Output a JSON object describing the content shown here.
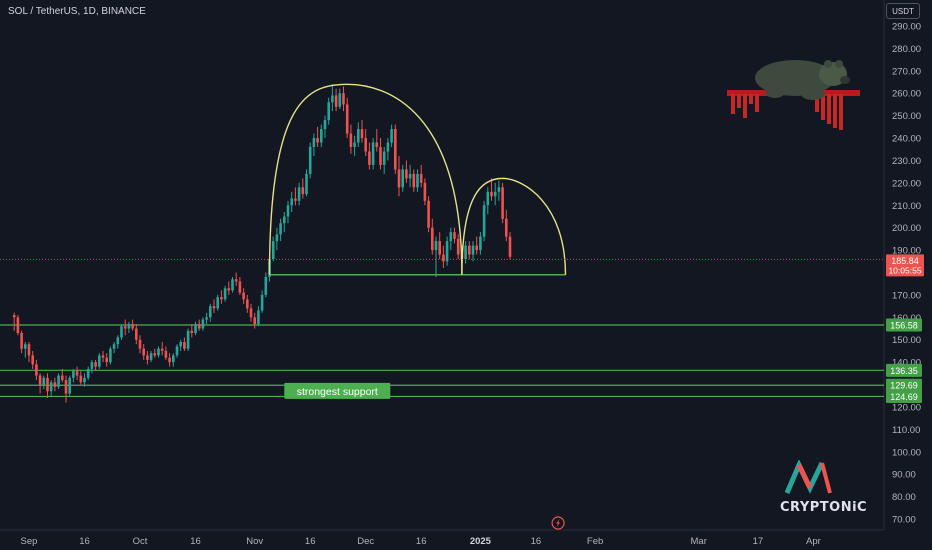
{
  "header": {
    "symbol_title": "SOL / TetherUS, 1D, BINANCE",
    "currency_button": "USDT"
  },
  "brand": {
    "logo_text": "CRYPTONiC"
  },
  "colors": {
    "background": "#131722",
    "up": "#26a69a",
    "down": "#ef5350",
    "support_line": "#4caf50",
    "pattern_curve": "#e5e28a",
    "text": "#d1d4dc",
    "current_price_line": "#ef5350"
  },
  "chart_data": {
    "type": "candlestick",
    "title": "SOL / TetherUS, 1D, BINANCE",
    "ylim": [
      65,
      295
    ],
    "y_ticks": [
      "290.00",
      "280.00",
      "270.00",
      "260.00",
      "250.00",
      "240.00",
      "230.00",
      "220.00",
      "210.00",
      "200.00",
      "190.00",
      "180.00",
      "170.00",
      "160.00",
      "150.00",
      "140.00",
      "130.00",
      "120.00",
      "110.00",
      "100.00",
      "90.00",
      "80.00",
      "70.00"
    ],
    "x_ticks": [
      "Sep",
      "16",
      "Oct",
      "16",
      "Nov",
      "16",
      "Dec",
      "16",
      "2025",
      "16",
      "Feb",
      "Mar",
      "17",
      "Apr"
    ],
    "x_tick_dates": [
      "2024-09-01",
      "2024-09-16",
      "2024-10-01",
      "2024-10-16",
      "2024-11-01",
      "2024-11-16",
      "2024-12-01",
      "2024-12-16",
      "2025-01-01",
      "2025-01-16",
      "2025-02-01",
      "2025-03-01",
      "2025-03-17",
      "2025-04-01"
    ],
    "current_price": {
      "value": "185.84",
      "countdown": "10:05:55"
    },
    "horizontal_levels": [
      {
        "value": 156.58,
        "label": "156.58"
      },
      {
        "value": 136.35,
        "label": "136.35"
      },
      {
        "value": 129.69,
        "label": "129.69"
      },
      {
        "value": 124.69,
        "label": "124.69"
      }
    ],
    "annotations": [
      {
        "text": "strongest support",
        "date": "2024-11-09",
        "price": 127.2
      }
    ],
    "pattern": {
      "type": "head-and-shoulders-like double top",
      "neckline": {
        "start_date": "2024-11-05",
        "end_date": "2025-01-24",
        "price": 179
      },
      "arc1": {
        "start_date": "2024-11-05",
        "peak_date": "2024-11-26",
        "peak_price": 264,
        "end_date": "2024-12-27"
      },
      "arc2": {
        "start_date": "2024-12-27",
        "peak_date": "2025-01-07",
        "peak_price": 222,
        "end_date": "2025-01-24"
      }
    },
    "candles": [
      [
        "2024-08-28",
        161,
        162,
        154,
        160
      ],
      [
        "2024-08-29",
        160,
        161,
        152,
        153
      ],
      [
        "2024-08-30",
        153,
        154,
        144,
        146
      ],
      [
        "2024-08-31",
        146,
        149,
        142,
        148
      ],
      [
        "2024-09-01",
        148,
        149,
        140,
        143
      ],
      [
        "2024-09-02",
        143,
        145,
        137,
        139
      ],
      [
        "2024-09-03",
        139,
        141,
        132,
        134
      ],
      [
        "2024-09-04",
        134,
        135,
        126,
        130
      ],
      [
        "2024-09-05",
        130,
        134,
        128,
        133
      ],
      [
        "2024-09-06",
        133,
        135,
        124,
        127
      ],
      [
        "2024-09-07",
        127,
        132,
        125,
        131
      ],
      [
        "2024-09-08",
        131,
        133,
        127,
        129
      ],
      [
        "2024-09-09",
        129,
        135,
        128,
        134
      ],
      [
        "2024-09-10",
        134,
        137,
        131,
        132
      ],
      [
        "2024-09-11",
        132,
        134,
        122,
        126
      ],
      [
        "2024-09-12",
        126,
        134,
        125,
        133
      ],
      [
        "2024-09-13",
        133,
        137,
        131,
        136
      ],
      [
        "2024-09-14",
        136,
        138,
        132,
        134
      ],
      [
        "2024-09-15",
        134,
        136,
        130,
        131
      ],
      [
        "2024-09-16",
        131,
        135,
        129,
        133
      ],
      [
        "2024-09-17",
        133,
        138,
        132,
        137
      ],
      [
        "2024-09-18",
        137,
        141,
        135,
        140
      ],
      [
        "2024-09-19",
        140,
        141,
        136,
        138
      ],
      [
        "2024-09-20",
        138,
        144,
        137,
        143
      ],
      [
        "2024-09-21",
        143,
        145,
        140,
        142
      ],
      [
        "2024-09-22",
        142,
        144,
        138,
        140
      ],
      [
        "2024-09-23",
        140,
        147,
        139,
        146
      ],
      [
        "2024-09-24",
        146,
        149,
        144,
        148
      ],
      [
        "2024-09-25",
        148,
        152,
        146,
        151
      ],
      [
        "2024-09-26",
        151,
        157,
        150,
        156
      ],
      [
        "2024-09-27",
        156,
        159,
        152,
        155
      ],
      [
        "2024-09-28",
        155,
        158,
        153,
        157
      ],
      [
        "2024-09-29",
        157,
        159,
        154,
        155
      ],
      [
        "2024-09-30",
        155,
        157,
        148,
        150
      ],
      [
        "2024-10-01",
        150,
        152,
        144,
        146
      ],
      [
        "2024-10-02",
        146,
        148,
        141,
        143
      ],
      [
        "2024-10-03",
        143,
        145,
        139,
        141
      ],
      [
        "2024-10-04",
        141,
        145,
        140,
        144
      ],
      [
        "2024-10-05",
        144,
        146,
        142,
        143
      ],
      [
        "2024-10-06",
        143,
        147,
        142,
        146
      ],
      [
        "2024-10-07",
        146,
        149,
        143,
        145
      ],
      [
        "2024-10-08",
        145,
        147,
        141,
        142
      ],
      [
        "2024-10-09",
        142,
        144,
        138,
        140
      ],
      [
        "2024-10-10",
        140,
        144,
        138,
        143
      ],
      [
        "2024-10-11",
        143,
        148,
        142,
        147
      ],
      [
        "2024-10-12",
        147,
        150,
        145,
        149
      ],
      [
        "2024-10-13",
        149,
        151,
        145,
        146
      ],
      [
        "2024-10-14",
        146,
        155,
        145,
        154
      ],
      [
        "2024-10-15",
        154,
        157,
        151,
        153
      ],
      [
        "2024-10-16",
        153,
        158,
        152,
        157
      ],
      [
        "2024-10-17",
        157,
        159,
        154,
        155
      ],
      [
        "2024-10-18",
        155,
        160,
        154,
        159
      ],
      [
        "2024-10-19",
        159,
        162,
        157,
        160
      ],
      [
        "2024-10-20",
        160,
        166,
        158,
        165
      ],
      [
        "2024-10-21",
        165,
        168,
        162,
        164
      ],
      [
        "2024-10-22",
        164,
        170,
        163,
        169
      ],
      [
        "2024-10-23",
        169,
        172,
        166,
        168
      ],
      [
        "2024-10-24",
        168,
        174,
        167,
        173
      ],
      [
        "2024-10-25",
        173,
        176,
        170,
        172
      ],
      [
        "2024-10-26",
        172,
        178,
        171,
        177
      ],
      [
        "2024-10-27",
        177,
        180,
        174,
        176
      ],
      [
        "2024-10-28",
        176,
        178,
        170,
        171
      ],
      [
        "2024-10-29",
        171,
        173,
        166,
        168
      ],
      [
        "2024-10-30",
        168,
        170,
        162,
        164
      ],
      [
        "2024-10-31",
        164,
        166,
        158,
        160
      ],
      [
        "2024-11-01",
        160,
        162,
        155,
        157
      ],
      [
        "2024-11-02",
        157,
        165,
        156,
        163
      ],
      [
        "2024-11-03",
        163,
        172,
        162,
        170
      ],
      [
        "2024-11-04",
        170,
        180,
        169,
        178
      ],
      [
        "2024-11-05",
        178,
        188,
        176,
        186
      ],
      [
        "2024-11-06",
        186,
        196,
        185,
        194
      ],
      [
        "2024-11-07",
        194,
        200,
        190,
        197
      ],
      [
        "2024-11-08",
        197,
        204,
        194,
        202
      ],
      [
        "2024-11-09",
        202,
        207,
        198,
        205
      ],
      [
        "2024-11-10",
        205,
        212,
        202,
        210
      ],
      [
        "2024-11-11",
        210,
        216,
        207,
        213
      ],
      [
        "2024-11-12",
        213,
        218,
        210,
        212
      ],
      [
        "2024-11-13",
        212,
        220,
        210,
        218
      ],
      [
        "2024-11-14",
        218,
        222,
        213,
        215
      ],
      [
        "2024-11-15",
        215,
        226,
        214,
        224
      ],
      [
        "2024-11-16",
        224,
        238,
        222,
        236
      ],
      [
        "2024-11-17",
        236,
        242,
        232,
        240
      ],
      [
        "2024-11-18",
        240,
        245,
        236,
        238
      ],
      [
        "2024-11-19",
        238,
        246,
        236,
        244
      ],
      [
        "2024-11-20",
        244,
        250,
        240,
        248
      ],
      [
        "2024-11-21",
        248,
        258,
        246,
        256
      ],
      [
        "2024-11-22",
        256,
        264,
        252,
        259
      ],
      [
        "2024-11-23",
        259,
        262,
        252,
        254
      ],
      [
        "2024-11-24",
        254,
        262,
        253,
        260
      ],
      [
        "2024-11-25",
        260,
        263,
        252,
        255
      ],
      [
        "2024-11-26",
        255,
        258,
        240,
        242
      ],
      [
        "2024-11-27",
        242,
        246,
        233,
        236
      ],
      [
        "2024-11-28",
        236,
        241,
        232,
        238
      ],
      [
        "2024-11-29",
        238,
        247,
        236,
        244
      ],
      [
        "2024-11-30",
        244,
        248,
        238,
        240
      ],
      [
        "2024-12-01",
        240,
        244,
        232,
        234
      ],
      [
        "2024-12-02",
        234,
        238,
        226,
        228
      ],
      [
        "2024-12-03",
        228,
        240,
        226,
        238
      ],
      [
        "2024-12-04",
        238,
        244,
        234,
        236
      ],
      [
        "2024-12-05",
        236,
        240,
        226,
        228
      ],
      [
        "2024-12-06",
        228,
        236,
        224,
        234
      ],
      [
        "2024-12-07",
        234,
        240,
        230,
        238
      ],
      [
        "2024-12-08",
        238,
        246,
        236,
        244
      ],
      [
        "2024-12-09",
        244,
        246,
        224,
        226
      ],
      [
        "2024-12-10",
        226,
        232,
        214,
        218
      ],
      [
        "2024-12-11",
        218,
        228,
        216,
        226
      ],
      [
        "2024-12-12",
        226,
        230,
        220,
        222
      ],
      [
        "2024-12-13",
        222,
        228,
        218,
        224
      ],
      [
        "2024-12-14",
        224,
        226,
        216,
        218
      ],
      [
        "2024-12-15",
        218,
        226,
        216,
        224
      ],
      [
        "2024-12-16",
        224,
        228,
        218,
        220
      ],
      [
        "2024-12-17",
        220,
        222,
        210,
        212
      ],
      [
        "2024-12-18",
        212,
        214,
        198,
        200
      ],
      [
        "2024-12-19",
        200,
        204,
        188,
        190
      ],
      [
        "2024-12-20",
        190,
        196,
        178,
        194
      ],
      [
        "2024-12-21",
        194,
        198,
        186,
        188
      ],
      [
        "2024-12-22",
        188,
        192,
        182,
        185
      ],
      [
        "2024-12-23",
        185,
        196,
        183,
        194
      ],
      [
        "2024-12-24",
        194,
        200,
        190,
        198
      ],
      [
        "2024-12-25",
        198,
        200,
        193,
        195
      ],
      [
        "2024-12-26",
        195,
        197,
        186,
        188
      ],
      [
        "2024-12-27",
        188,
        192,
        182,
        186
      ],
      [
        "2024-12-28",
        186,
        194,
        184,
        192
      ],
      [
        "2024-12-29",
        192,
        194,
        186,
        188
      ],
      [
        "2024-12-30",
        188,
        194,
        185,
        192
      ],
      [
        "2024-12-31",
        192,
        196,
        188,
        190
      ],
      [
        "2025-01-01",
        190,
        198,
        188,
        196
      ],
      [
        "2025-01-02",
        196,
        212,
        194,
        210
      ],
      [
        "2025-01-03",
        210,
        218,
        206,
        216
      ],
      [
        "2025-01-04",
        216,
        222,
        212,
        214
      ],
      [
        "2025-01-05",
        214,
        220,
        210,
        216
      ],
      [
        "2025-01-06",
        216,
        221,
        212,
        218
      ],
      [
        "2025-01-07",
        218,
        220,
        202,
        204
      ],
      [
        "2025-01-08",
        204,
        208,
        194,
        196
      ],
      [
        "2025-01-09",
        196,
        198,
        186,
        187
      ]
    ]
  }
}
